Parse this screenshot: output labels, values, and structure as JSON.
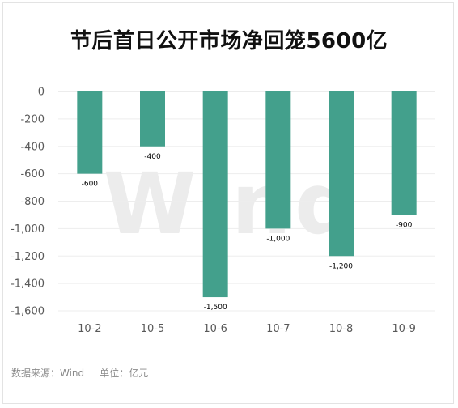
{
  "chart_data": {
    "type": "bar",
    "title": "节后首日公开市场净回笼5600亿",
    "watermark": "Wind",
    "source_note": "数据来源：Wind     单位：亿元",
    "categories": [
      "10-2",
      "10-5",
      "10-6",
      "10-7",
      "10-8",
      "10-9"
    ],
    "values": [
      -600,
      -400,
      -1500,
      -1000,
      -1200,
      -900
    ],
    "value_labels": [
      "-600",
      "-400",
      "-1,500",
      "-1,000",
      "-1,200",
      "-900"
    ],
    "ylim": [
      -1600,
      0
    ],
    "yticks": [
      0,
      -200,
      -400,
      -600,
      -800,
      -1000,
      -1200,
      -1400,
      -1600
    ],
    "ytick_labels": [
      "0",
      "-200",
      "-400",
      "-600",
      "-800",
      "-1,000",
      "-1,200",
      "-1,400",
      "-1,600"
    ],
    "grid": true,
    "legend": "none",
    "bar_color": "#43a08c"
  }
}
